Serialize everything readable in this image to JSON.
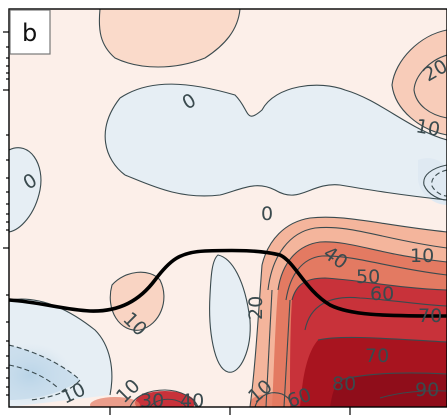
{
  "panel": {
    "label": "b"
  },
  "chart_data": {
    "type": "contour",
    "panel_label": "b",
    "title": "",
    "xlabel": "",
    "ylabel": "",
    "colormap": "diverging blue-white-red",
    "contour_levels": [
      -20,
      -10,
      0,
      10,
      20,
      30,
      40,
      50,
      60,
      70,
      80,
      90
    ],
    "negative_contours_dashed": true,
    "contour_labels": [
      "20",
      "10",
      "0",
      "0",
      "0",
      "40",
      "50",
      "60",
      "10",
      "20",
      "70",
      "10",
      "70",
      "80",
      "90",
      "10",
      "60",
      "10",
      "10",
      "30",
      "40"
    ],
    "thick_line": {
      "description": "black reference line",
      "color": "#000000"
    },
    "x_ticks_count": 3,
    "tick_labels_visible": false,
    "colors": {
      "strong_positive": "#b2182b",
      "positive": "#d6604d",
      "weak_positive": "#f4a582",
      "faint_positive": "#fbe7dc",
      "faint_negative": "#e6eef4",
      "negative": "#a9c9e0",
      "contour_line": "#3a4a4e"
    }
  }
}
